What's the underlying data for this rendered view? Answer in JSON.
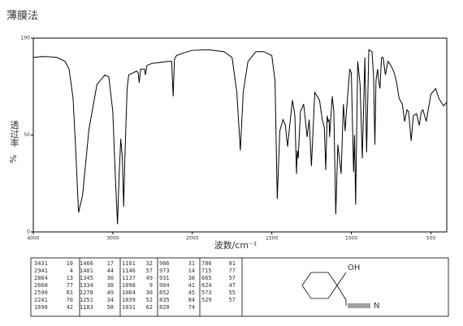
{
  "title": "薄膜法",
  "chart_data": {
    "type": "line",
    "xlabel": "波数/cm⁻¹",
    "ylabel": "透过率",
    "yunit": "%",
    "color": "#000000",
    "x": [
      4000,
      3900,
      3800,
      3700,
      3600,
      3550,
      3500,
      3470,
      3431,
      3380,
      3300,
      3200,
      3100,
      3050,
      3000,
      2970,
      2941,
      2920,
      2900,
      2880,
      2864,
      2850,
      2820,
      2800,
      2700,
      2680,
      2668,
      2650,
      2600,
      2590,
      2570,
      2500,
      2400,
      2300,
      2260,
      2241,
      2225,
      2200,
      2100,
      2000,
      1900,
      1800,
      1750,
      1720,
      1698,
      1680,
      1650,
      1600,
      1550,
      1500,
      1480,
      1466,
      1450,
      1430,
      1415,
      1401,
      1385,
      1370,
      1355,
      1345,
      1340,
      1334,
      1320,
      1300,
      1278,
      1265,
      1251,
      1230,
      1200,
      1183,
      1170,
      1161,
      1152,
      1146,
      1140,
      1137,
      1120,
      1110,
      1098,
      1085,
      1064,
      1050,
      1039,
      1031,
      1010,
      1000,
      986,
      980,
      973,
      960,
      945,
      931,
      915,
      904,
      890,
      870,
      860,
      852,
      845,
      835,
      828,
      820,
      810,
      800,
      786,
      770,
      760,
      740,
      730,
      715,
      700,
      680,
      665,
      650,
      640,
      624,
      610,
      590,
      573,
      560,
      550,
      529,
      510,
      500,
      470,
      450,
      420,
      400
    ],
    "values": [
      90,
      90.5,
      90.4,
      90,
      88,
      84,
      69,
      45,
      10,
      19,
      53,
      76,
      81,
      80,
      62,
      30,
      4,
      30,
      48,
      38,
      13,
      36,
      74,
      81,
      83,
      82,
      77,
      84,
      84,
      81,
      86,
      87,
      87.5,
      88,
      88,
      70,
      89,
      91,
      92.5,
      93.7,
      94,
      93,
      90,
      72,
      42,
      72,
      88,
      93,
      93,
      91,
      78,
      17,
      52,
      58,
      55,
      44,
      57,
      68,
      60,
      30,
      42,
      38,
      62,
      66,
      49,
      58,
      34,
      72,
      68,
      58,
      54,
      32,
      60,
      57,
      58,
      49,
      70,
      62,
      9,
      45,
      30,
      66,
      52,
      62,
      84,
      82,
      31,
      50,
      14,
      88,
      76,
      38,
      90,
      41,
      94,
      93,
      80,
      45,
      78,
      84,
      78,
      74,
      90,
      90,
      81,
      88,
      87,
      84,
      82,
      77,
      69,
      66,
      57,
      63,
      62,
      47,
      60,
      61,
      55,
      62,
      63,
      57,
      66,
      71,
      74,
      69,
      65,
      67
    ],
    "xlim": [
      4000,
      400
    ],
    "ylim": [
      0,
      100
    ],
    "xticks": [
      4000,
      3000,
      2000,
      1500,
      1000,
      500
    ],
    "yticks": [
      0,
      50,
      100
    ]
  },
  "peak_table": {
    "columns": [
      [
        [
          3431,
          10
        ],
        [
          2941,
          4
        ],
        [
          2864,
          13
        ],
        [
          2668,
          77
        ],
        [
          2590,
          81
        ],
        [
          2241,
          70
        ],
        [
          1698,
          42
        ]
      ],
      [
        [
          1466,
          17
        ],
        [
          1401,
          44
        ],
        [
          1345,
          30
        ],
        [
          1334,
          38
        ],
        [
          1278,
          49
        ],
        [
          1251,
          34
        ],
        [
          1183,
          58
        ]
      ],
      [
        [
          1161,
          32
        ],
        [
          1146,
          57
        ],
        [
          1137,
          49
        ],
        [
          1098,
          9
        ],
        [
          1064,
          30
        ],
        [
          1039,
          52
        ],
        [
          1031,
          62
        ]
      ],
      [
        [
          986,
          31
        ],
        [
          973,
          14
        ],
        [
          931,
          38
        ],
        [
          904,
          41
        ],
        [
          852,
          45
        ],
        [
          835,
          84
        ],
        [
          820,
          74
        ]
      ],
      [
        [
          786,
          81
        ],
        [
          715,
          77
        ],
        [
          665,
          57
        ],
        [
          624,
          47
        ],
        [
          573,
          55
        ],
        [
          529,
          57
        ]
      ]
    ]
  },
  "structure": {
    "labels": [
      "OH",
      "N"
    ]
  }
}
